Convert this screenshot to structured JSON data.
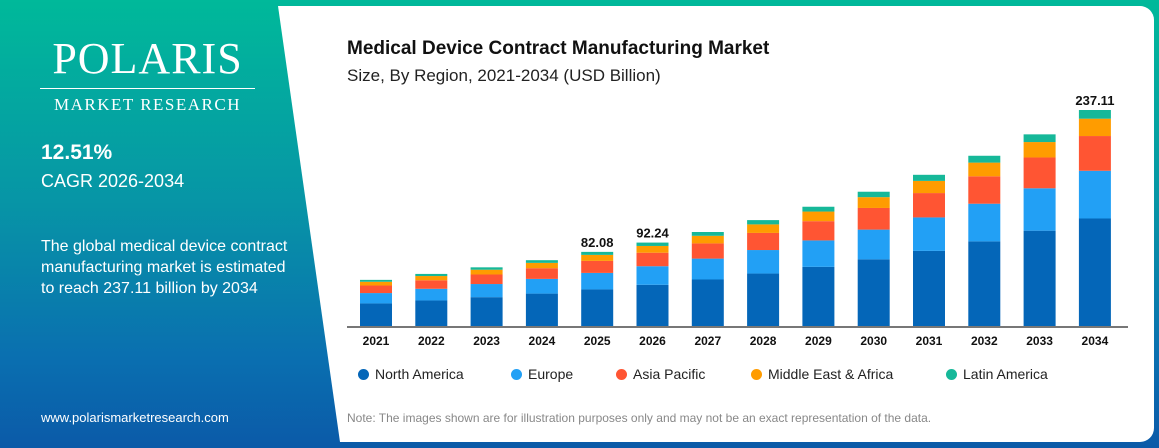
{
  "brand": {
    "logo_top": "POLARIS",
    "logo_bottom": "MARKET RESEARCH",
    "website": "www.polarismarketresearch.com"
  },
  "cagr": {
    "value": "12.51%",
    "label": "CAGR 2026-2034"
  },
  "description": "The global medical device contract manufacturing market is estimated to reach 237.11 billion by 2034",
  "note": "Note: The images shown are for illustration purposes only and may not be an exact representation of the data.",
  "colors": {
    "North America": "#0466b8",
    "Europe": "#22a0f5",
    "Asia Pacific": "#ff5533",
    "Middle East & Africa": "#ff9c00",
    "Latin America": "#16b899"
  },
  "chart_data": {
    "type": "bar",
    "stacked": true,
    "title": "Medical Device Contract Manufacturing Market",
    "subtitle": "Size, By Region, 2021-2034 (USD Billion)",
    "categories": [
      "2021",
      "2022",
      "2023",
      "2024",
      "2025",
      "2026",
      "2027",
      "2028",
      "2029",
      "2030",
      "2031",
      "2032",
      "2033",
      "2034"
    ],
    "totals": [
      51.5,
      58.0,
      65.2,
      73.0,
      82.08,
      92.24,
      103.8,
      116.8,
      131.4,
      147.8,
      166.3,
      187.1,
      210.5,
      237.11
    ],
    "total_labels": {
      "2025": "82.08",
      "2026": "92.24",
      "2034": "237.11"
    },
    "series": [
      {
        "name": "North America",
        "share": 0.5
      },
      {
        "name": "Europe",
        "share": 0.22
      },
      {
        "name": "Asia Pacific",
        "share": 0.16
      },
      {
        "name": "Middle East & Africa",
        "share": 0.08
      },
      {
        "name": "Latin America",
        "share": 0.04
      }
    ],
    "ylim": [
      0,
      250
    ],
    "legend": "bottom",
    "grid": false
  }
}
